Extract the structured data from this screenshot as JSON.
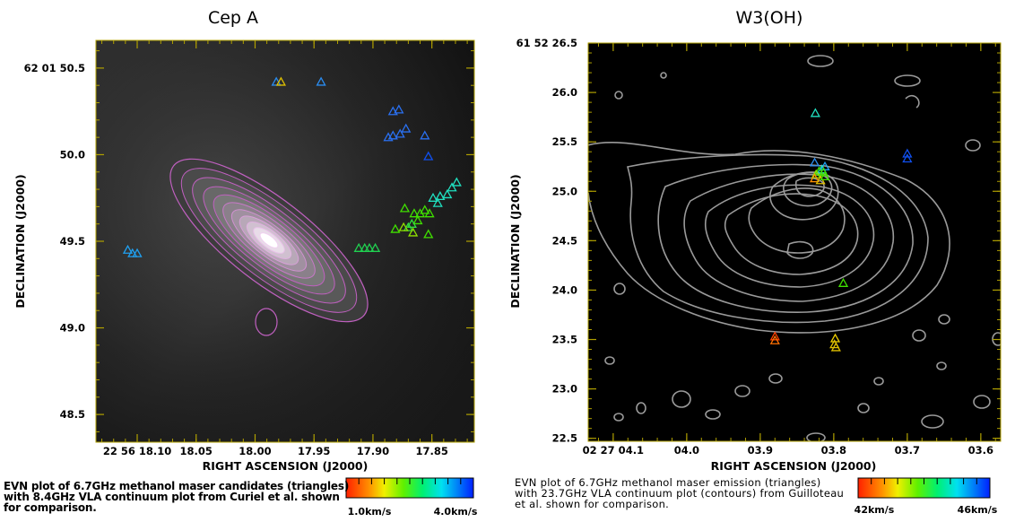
{
  "figure": {
    "left_caption": [
      "EVN plot of 6.7GHz methanol maser candidates (triangles)",
      "with 8.4GHz VLA continuum plot from Curiel et al. shown",
      "for comparison."
    ],
    "right_caption": [
      "EVN plot of 6.7GHz methanol maser emission (triangles)",
      "with 23.7GHz VLA continuum plot (contours) from Guilloteau",
      "et al. shown for comparison."
    ]
  },
  "chart_data": [
    {
      "type": "scatter",
      "title": "Cep A",
      "xlabel": "RIGHT ASCENSION (J2000)",
      "ylabel": "DECLINATION (J2000)",
      "xlim": [
        18.135,
        17.814
      ],
      "ylim": [
        48.34,
        50.66
      ],
      "x_ticks": [
        {
          "value": 18.1,
          "label": "22 56 18.10"
        },
        {
          "value": 18.05,
          "label": "18.05"
        },
        {
          "value": 18.0,
          "label": "18.00"
        },
        {
          "value": 17.95,
          "label": "17.95"
        },
        {
          "value": 17.9,
          "label": "17.90"
        },
        {
          "value": 17.85,
          "label": "17.85"
        }
      ],
      "y_ticks": [
        {
          "value": 50.5,
          "label": "62 01 50.5"
        },
        {
          "value": 50.0,
          "label": "50.0"
        },
        {
          "value": 49.5,
          "label": "49.5"
        },
        {
          "value": 49.0,
          "label": "49.0"
        },
        {
          "value": 48.5,
          "label": "48.5"
        }
      ],
      "background": "grey-scale continuum image",
      "contour_color": "#c060c0",
      "colorbar": {
        "labels": [
          "1.0km/s",
          "4.0km/s"
        ],
        "colors": [
          "#ff2000",
          "#ff9000",
          "#f0f000",
          "#90f000",
          "#20e000",
          "#00f080",
          "#00f0e0",
          "#00b0ff",
          "#0060ff",
          "#0020ff"
        ]
      },
      "points": [
        {
          "x": 17.982,
          "y": 50.42,
          "color": "#2a8cf0"
        },
        {
          "x": 17.978,
          "y": 50.42,
          "color": "#e0c000"
        },
        {
          "x": 17.944,
          "y": 50.42,
          "color": "#2a8cf0"
        },
        {
          "x": 17.883,
          "y": 50.25,
          "color": "#2a70f0"
        },
        {
          "x": 17.878,
          "y": 50.26,
          "color": "#2a70f0"
        },
        {
          "x": 17.883,
          "y": 50.11,
          "color": "#2a70f0"
        },
        {
          "x": 17.877,
          "y": 50.12,
          "color": "#2a70f0"
        },
        {
          "x": 17.872,
          "y": 50.15,
          "color": "#2a70f0"
        },
        {
          "x": 17.887,
          "y": 50.1,
          "color": "#2a70f0"
        },
        {
          "x": 17.856,
          "y": 50.11,
          "color": "#2a70f0"
        },
        {
          "x": 17.853,
          "y": 49.99,
          "color": "#1050f0"
        },
        {
          "x": 17.829,
          "y": 49.84,
          "color": "#20e0c0"
        },
        {
          "x": 17.833,
          "y": 49.81,
          "color": "#20e0c0"
        },
        {
          "x": 17.837,
          "y": 49.77,
          "color": "#20e0c0"
        },
        {
          "x": 17.843,
          "y": 49.76,
          "color": "#20e0c0"
        },
        {
          "x": 17.849,
          "y": 49.75,
          "color": "#20e0c0"
        },
        {
          "x": 17.845,
          "y": 49.72,
          "color": "#20e0c0"
        },
        {
          "x": 17.873,
          "y": 49.69,
          "color": "#40e000"
        },
        {
          "x": 17.865,
          "y": 49.66,
          "color": "#40e000"
        },
        {
          "x": 17.86,
          "y": 49.66,
          "color": "#40e000"
        },
        {
          "x": 17.856,
          "y": 49.68,
          "color": "#40e000"
        },
        {
          "x": 17.852,
          "y": 49.66,
          "color": "#40e000"
        },
        {
          "x": 17.862,
          "y": 49.62,
          "color": "#40e000"
        },
        {
          "x": 17.867,
          "y": 49.6,
          "color": "#30e040"
        },
        {
          "x": 17.87,
          "y": 49.58,
          "color": "#30e040"
        },
        {
          "x": 17.874,
          "y": 49.58,
          "color": "#90e000"
        },
        {
          "x": 17.866,
          "y": 49.55,
          "color": "#90e000"
        },
        {
          "x": 17.881,
          "y": 49.57,
          "color": "#40e000"
        },
        {
          "x": 17.853,
          "y": 49.54,
          "color": "#40e000"
        },
        {
          "x": 17.912,
          "y": 49.46,
          "color": "#20d050"
        },
        {
          "x": 17.907,
          "y": 49.46,
          "color": "#20d050"
        },
        {
          "x": 17.903,
          "y": 49.46,
          "color": "#20d050"
        },
        {
          "x": 17.898,
          "y": 49.46,
          "color": "#20d050"
        },
        {
          "x": 18.108,
          "y": 49.45,
          "color": "#20a0f0"
        },
        {
          "x": 18.104,
          "y": 49.43,
          "color": "#20a0f0"
        },
        {
          "x": 18.1,
          "y": 49.43,
          "color": "#20a0f0"
        }
      ]
    },
    {
      "type": "scatter",
      "title": "W3(OH)",
      "xlabel": "RIGHT ASCENSION (J2000)",
      "ylabel": "DECLINATION (J2000)",
      "xlim": [
        4.134,
        3.573
      ],
      "ylim": [
        22.47,
        26.5
      ],
      "x_ticks": [
        {
          "value": 4.1,
          "label": "02 27 04.1"
        },
        {
          "value": 4.0,
          "label": "04.0"
        },
        {
          "value": 3.9,
          "label": "03.9"
        },
        {
          "value": 3.8,
          "label": "03.8"
        },
        {
          "value": 3.7,
          "label": "03.7"
        },
        {
          "value": 3.6,
          "label": "03.6"
        }
      ],
      "y_ticks": [
        {
          "value": 26.5,
          "label": "61 52 26.5"
        },
        {
          "value": 26.0,
          "label": "26.0"
        },
        {
          "value": 25.5,
          "label": "25.5"
        },
        {
          "value": 25.0,
          "label": "25.0"
        },
        {
          "value": 24.5,
          "label": "24.5"
        },
        {
          "value": 24.0,
          "label": "24.0"
        },
        {
          "value": 23.5,
          "label": "23.5"
        },
        {
          "value": 23.0,
          "label": "23.0"
        },
        {
          "value": 22.5,
          "label": "22.5"
        }
      ],
      "background": "#000000",
      "contour_color": "#9a9a9a",
      "colorbar": {
        "labels": [
          "42km/s",
          "46km/s"
        ],
        "colors": [
          "#ff2000",
          "#ff9000",
          "#f0f000",
          "#90f000",
          "#20e000",
          "#00f080",
          "#00f0e0",
          "#00b0ff",
          "#0060ff",
          "#0020ff"
        ]
      },
      "points": [
        {
          "x": 3.825,
          "y": 25.79,
          "color": "#20e0c0"
        },
        {
          "x": 3.826,
          "y": 25.29,
          "color": "#2a8cf0"
        },
        {
          "x": 3.812,
          "y": 25.25,
          "color": "#20a0f0"
        },
        {
          "x": 3.816,
          "y": 25.22,
          "color": "#20e0c0"
        },
        {
          "x": 3.82,
          "y": 25.2,
          "color": "#40e000"
        },
        {
          "x": 3.824,
          "y": 25.17,
          "color": "#90e000"
        },
        {
          "x": 3.814,
          "y": 25.19,
          "color": "#40e000"
        },
        {
          "x": 3.826,
          "y": 25.13,
          "color": "#ff9000"
        },
        {
          "x": 3.818,
          "y": 25.11,
          "color": "#e0c000"
        },
        {
          "x": 3.812,
          "y": 25.15,
          "color": "#40e000"
        },
        {
          "x": 3.7,
          "y": 25.38,
          "color": "#1050f0"
        },
        {
          "x": 3.7,
          "y": 25.33,
          "color": "#1050f0"
        },
        {
          "x": 3.787,
          "y": 24.07,
          "color": "#40e000"
        },
        {
          "x": 3.88,
          "y": 23.53,
          "color": "#ff4000"
        },
        {
          "x": 3.88,
          "y": 23.49,
          "color": "#ff7000"
        },
        {
          "x": 3.798,
          "y": 23.51,
          "color": "#f0d000"
        },
        {
          "x": 3.799,
          "y": 23.45,
          "color": "#e0c000"
        },
        {
          "x": 3.797,
          "y": 23.42,
          "color": "#e0c000"
        }
      ]
    }
  ]
}
